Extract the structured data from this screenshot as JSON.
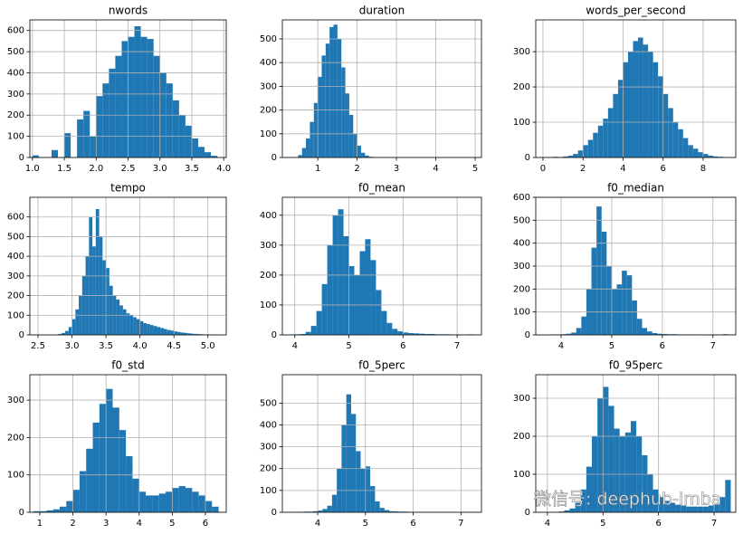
{
  "chart_data": [
    {
      "type": "histogram",
      "title": "nwords",
      "color": "#1f77b4",
      "grid": true,
      "bins": [
        1.0,
        1.1,
        1.2,
        1.3,
        1.4,
        1.5,
        1.6,
        1.7,
        1.8,
        1.9,
        2.0,
        2.1,
        2.2,
        2.3,
        2.4,
        2.5,
        2.6,
        2.7,
        2.8,
        2.9,
        3.0,
        3.1,
        3.2,
        3.3,
        3.4,
        3.5,
        3.6,
        3.7,
        3.8,
        3.9
      ],
      "values": [
        10,
        0,
        0,
        35,
        0,
        115,
        0,
        180,
        220,
        100,
        290,
        350,
        420,
        480,
        550,
        570,
        620,
        570,
        560,
        480,
        400,
        350,
        270,
        200,
        150,
        90,
        50,
        25,
        8
      ],
      "xlim": [
        0.96,
        4.04
      ],
      "xticks": [
        {
          "value": 1,
          "label": "1.0"
        },
        1.5,
        {
          "value": 2,
          "label": "2.0"
        },
        2.5,
        {
          "value": 3,
          "label": "3.0"
        },
        3.5,
        {
          "value": 4,
          "label": "4.0"
        }
      ],
      "ylim": [
        0,
        650
      ],
      "yticks": [
        0,
        100,
        200,
        300,
        400,
        500,
        600
      ]
    },
    {
      "type": "histogram",
      "title": "duration",
      "color": "#1f77b4",
      "grid": true,
      "bins": [
        0.5,
        0.6,
        0.7,
        0.8,
        0.9,
        1.0,
        1.1,
        1.2,
        1.3,
        1.4,
        1.5,
        1.6,
        1.7,
        1.8,
        1.9,
        2.0,
        2.1,
        2.2,
        2.3,
        2.4,
        2.5
      ],
      "values": [
        10,
        40,
        80,
        150,
        230,
        340,
        430,
        480,
        550,
        560,
        500,
        380,
        270,
        180,
        100,
        50,
        20,
        8,
        3,
        1
      ],
      "xlim": [
        0.1,
        5.16
      ],
      "xticks": [
        1,
        2,
        3,
        4,
        5
      ],
      "ylim": [
        0,
        580
      ],
      "yticks": [
        0,
        100,
        200,
        300,
        400,
        500
      ]
    },
    {
      "type": "histogram",
      "title": "words_per_second",
      "color": "#1f77b4",
      "grid": true,
      "bins": [
        0.5,
        0.75,
        1.0,
        1.25,
        1.5,
        1.75,
        2.0,
        2.25,
        2.5,
        2.75,
        3.0,
        3.25,
        3.5,
        3.75,
        4.0,
        4.25,
        4.5,
        4.75,
        5.0,
        5.25,
        5.5,
        5.75,
        6.0,
        6.25,
        6.5,
        6.75,
        7.0,
        7.25,
        7.5,
        7.75,
        8.0,
        8.25,
        8.5,
        8.75,
        9.0
      ],
      "values": [
        2,
        0,
        3,
        5,
        10,
        20,
        35,
        50,
        70,
        90,
        110,
        140,
        180,
        220,
        270,
        300,
        330,
        340,
        320,
        300,
        270,
        230,
        180,
        140,
        100,
        80,
        55,
        35,
        25,
        15,
        10,
        5,
        3,
        2
      ],
      "xlim": [
        -0.36,
        9.63
      ],
      "xticks": [
        0,
        2,
        4,
        6,
        8
      ],
      "ylim": [
        0,
        390
      ],
      "yticks": [
        0,
        100,
        200,
        300
      ]
    },
    {
      "type": "histogram",
      "title": "tempo",
      "color": "#1f77b4",
      "grid": true,
      "bins": [
        2.8,
        2.85,
        2.9,
        2.95,
        3.0,
        3.05,
        3.1,
        3.15,
        3.2,
        3.25,
        3.3,
        3.35,
        3.4,
        3.45,
        3.5,
        3.55,
        3.6,
        3.65,
        3.7,
        3.75,
        3.8,
        3.85,
        3.9,
        3.95,
        4.0,
        4.05,
        4.1,
        4.15,
        4.2,
        4.25,
        4.3,
        4.35,
        4.4,
        4.45,
        4.5,
        4.55,
        4.6,
        4.65,
        4.7,
        4.75,
        4.8,
        4.85,
        4.9,
        4.95,
        5.0,
        5.05,
        5.1
      ],
      "values": [
        5,
        10,
        20,
        40,
        80,
        130,
        200,
        300,
        400,
        600,
        450,
        640,
        500,
        380,
        340,
        250,
        200,
        180,
        150,
        130,
        110,
        100,
        90,
        80,
        70,
        60,
        55,
        50,
        45,
        40,
        35,
        30,
        25,
        22,
        18,
        15,
        12,
        10,
        8,
        6,
        5,
        4,
        3,
        2,
        2,
        1
      ],
      "xlim": [
        2.38,
        5.27
      ],
      "xticks": [
        2.5,
        {
          "value": 3,
          "label": "3.0"
        },
        3.5,
        {
          "value": 4,
          "label": "4.0"
        },
        4.5,
        {
          "value": 5,
          "label": "5.0"
        }
      ],
      "ylim": [
        0,
        700
      ],
      "yticks": [
        0,
        100,
        200,
        300,
        400,
        500,
        600
      ]
    },
    {
      "type": "histogram",
      "title": "f0_mean",
      "color": "#1f77b4",
      "grid": true,
      "bins": [
        4.0,
        4.1,
        4.2,
        4.3,
        4.4,
        4.5,
        4.6,
        4.7,
        4.8,
        4.9,
        5.0,
        5.1,
        5.2,
        5.3,
        5.4,
        5.5,
        5.6,
        5.7,
        5.8,
        5.9,
        6.0,
        6.1,
        6.2,
        6.3,
        6.4,
        6.5,
        6.6,
        6.7,
        6.8,
        6.9,
        7.0,
        7.1,
        7.2,
        7.3
      ],
      "values": [
        2,
        3,
        10,
        30,
        80,
        170,
        300,
        400,
        420,
        330,
        230,
        200,
        280,
        320,
        250,
        150,
        80,
        40,
        20,
        12,
        8,
        6,
        5,
        4,
        3,
        3,
        2,
        2,
        2,
        1,
        1,
        1,
        2
      ],
      "xlim": [
        3.77,
        7.45
      ],
      "xticks": [
        4,
        5,
        6,
        7
      ],
      "ylim": [
        0,
        460
      ],
      "yticks": [
        0,
        100,
        200,
        300,
        400
      ]
    },
    {
      "type": "histogram",
      "title": "f0_median",
      "color": "#1f77b4",
      "grid": true,
      "bins": [
        3.8,
        3.9,
        4.0,
        4.1,
        4.2,
        4.3,
        4.4,
        4.5,
        4.6,
        4.7,
        4.8,
        4.9,
        5.0,
        5.1,
        5.2,
        5.3,
        5.4,
        5.5,
        5.6,
        5.7,
        5.8,
        5.9,
        6.0,
        6.1,
        6.2,
        6.3,
        6.4,
        6.5,
        6.6,
        6.7,
        6.8,
        6.9,
        7.0,
        7.1,
        7.2,
        7.3
      ],
      "values": [
        2,
        2,
        3,
        5,
        10,
        30,
        80,
        200,
        380,
        560,
        450,
        300,
        200,
        220,
        280,
        260,
        150,
        70,
        30,
        15,
        8,
        5,
        4,
        3,
        3,
        2,
        2,
        2,
        2,
        1,
        1,
        1,
        1,
        1,
        3
      ],
      "xlim": [
        3.5,
        7.45
      ],
      "xticks": [
        4,
        5,
        6,
        7
      ],
      "ylim": [
        0,
        600
      ],
      "yticks": [
        0,
        100,
        200,
        300,
        400,
        500,
        600
      ]
    },
    {
      "type": "histogram",
      "title": "f0_std",
      "color": "#1f77b4",
      "grid": true,
      "bins": [
        0.8,
        1.0,
        1.2,
        1.4,
        1.6,
        1.8,
        2.0,
        2.2,
        2.4,
        2.6,
        2.8,
        3.0,
        3.2,
        3.4,
        3.6,
        3.8,
        4.0,
        4.2,
        4.4,
        4.6,
        4.8,
        5.0,
        5.2,
        5.4,
        5.6,
        5.8,
        6.0,
        6.2,
        6.4
      ],
      "values": [
        3,
        3,
        5,
        8,
        15,
        30,
        60,
        110,
        170,
        240,
        290,
        330,
        280,
        220,
        150,
        90,
        55,
        45,
        45,
        50,
        55,
        65,
        70,
        65,
        55,
        45,
        30,
        15
      ],
      "xlim": [
        0.7,
        6.63
      ],
      "xticks": [
        1,
        2,
        3,
        4,
        5,
        6
      ],
      "ylim": [
        0,
        368
      ],
      "yticks": [
        0,
        100,
        200,
        300
      ]
    },
    {
      "type": "histogram",
      "title": "f0_5perc",
      "color": "#1f77b4",
      "grid": true,
      "bins": [
        3.5,
        3.6,
        3.7,
        3.8,
        3.9,
        4.0,
        4.1,
        4.2,
        4.3,
        4.4,
        4.5,
        4.6,
        4.7,
        4.8,
        4.9,
        5.0,
        5.1,
        5.2,
        5.3,
        5.4,
        5.5,
        5.6,
        5.7,
        5.8,
        5.9,
        6.0,
        6.1,
        6.2,
        6.3,
        6.4,
        6.5,
        6.6,
        6.7,
        6.8,
        6.9,
        7.0,
        7.1,
        7.2,
        7.3
      ],
      "values": [
        2,
        2,
        3,
        3,
        5,
        8,
        15,
        30,
        80,
        200,
        400,
        540,
        450,
        280,
        200,
        210,
        120,
        50,
        20,
        10,
        5,
        4,
        3,
        3,
        2,
        2,
        2,
        2,
        1,
        1,
        1,
        1,
        1,
        1,
        1,
        1,
        1,
        2
      ],
      "xlim": [
        3.26,
        7.43
      ],
      "xticks": [
        4,
        5,
        6,
        7
      ],
      "ylim": [
        0,
        630
      ],
      "yticks": [
        0,
        100,
        200,
        300,
        400,
        500
      ]
    },
    {
      "type": "histogram",
      "title": "f0_95perc",
      "color": "#1f77b4",
      "grid": true,
      "bins": [
        4.2,
        4.3,
        4.4,
        4.5,
        4.6,
        4.7,
        4.8,
        4.9,
        5.0,
        5.1,
        5.2,
        5.3,
        5.4,
        5.5,
        5.6,
        5.7,
        5.8,
        5.9,
        6.0,
        6.1,
        6.2,
        6.3,
        6.4,
        6.5,
        6.6,
        6.7,
        6.8,
        6.9,
        7.0,
        7.1,
        7.2,
        7.3
      ],
      "values": [
        2,
        5,
        10,
        25,
        60,
        120,
        200,
        300,
        330,
        280,
        220,
        200,
        210,
        240,
        200,
        150,
        100,
        60,
        40,
        30,
        25,
        20,
        18,
        15,
        15,
        15,
        15,
        18,
        20,
        40,
        85
      ],
      "xlim": [
        3.79,
        7.39
      ],
      "xticks": [
        4,
        5,
        6,
        7
      ],
      "ylim": [
        0,
        362
      ],
      "yticks": [
        0,
        100,
        200,
        300
      ]
    }
  ],
  "watermark": "微信号: deephub-imba"
}
